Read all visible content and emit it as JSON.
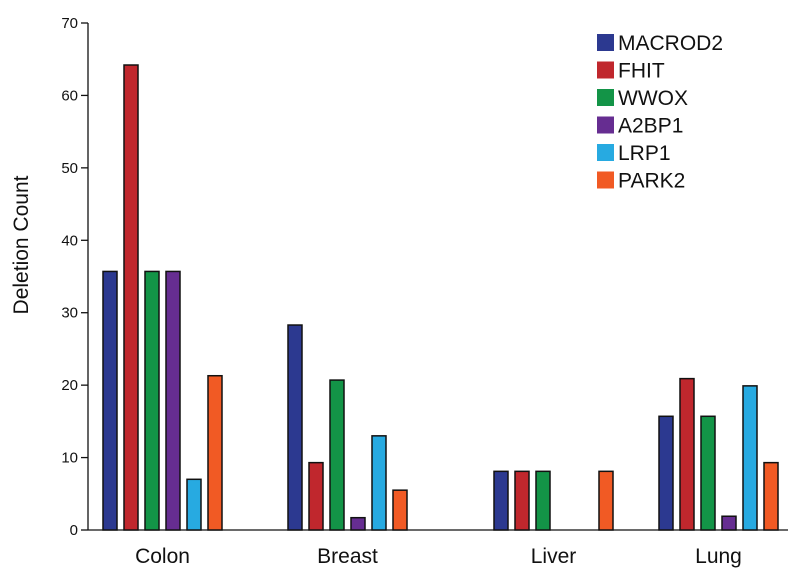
{
  "chart_data": {
    "type": "bar",
    "title": "",
    "xlabel": "",
    "ylabel": "Deletion Count",
    "ylim": [
      0,
      70
    ],
    "yticks": [
      0,
      10,
      20,
      30,
      40,
      50,
      60,
      70
    ],
    "grid": false,
    "legend_position": "top-right",
    "categories": [
      "Colon",
      "Breast",
      "Liver",
      "Lung"
    ],
    "series": [
      {
        "name": "MACROD2",
        "color": "#2c3990",
        "values": [
          35.7,
          28.3,
          8.1,
          15.7
        ]
      },
      {
        "name": "FHIT",
        "color": "#c0272d",
        "values": [
          64.2,
          9.3,
          8.1,
          20.9
        ]
      },
      {
        "name": "WWOX",
        "color": "#139447",
        "values": [
          35.7,
          20.7,
          8.1,
          15.7
        ]
      },
      {
        "name": "A2BP1",
        "color": "#662d91",
        "values": [
          35.7,
          1.7,
          null,
          1.9
        ]
      },
      {
        "name": "LRP1",
        "color": "#27aae1",
        "values": [
          7.0,
          13.0,
          null,
          19.9
        ]
      },
      {
        "name": "PARK2",
        "color": "#f15a24",
        "values": [
          21.3,
          5.5,
          8.1,
          9.3
        ]
      }
    ]
  }
}
